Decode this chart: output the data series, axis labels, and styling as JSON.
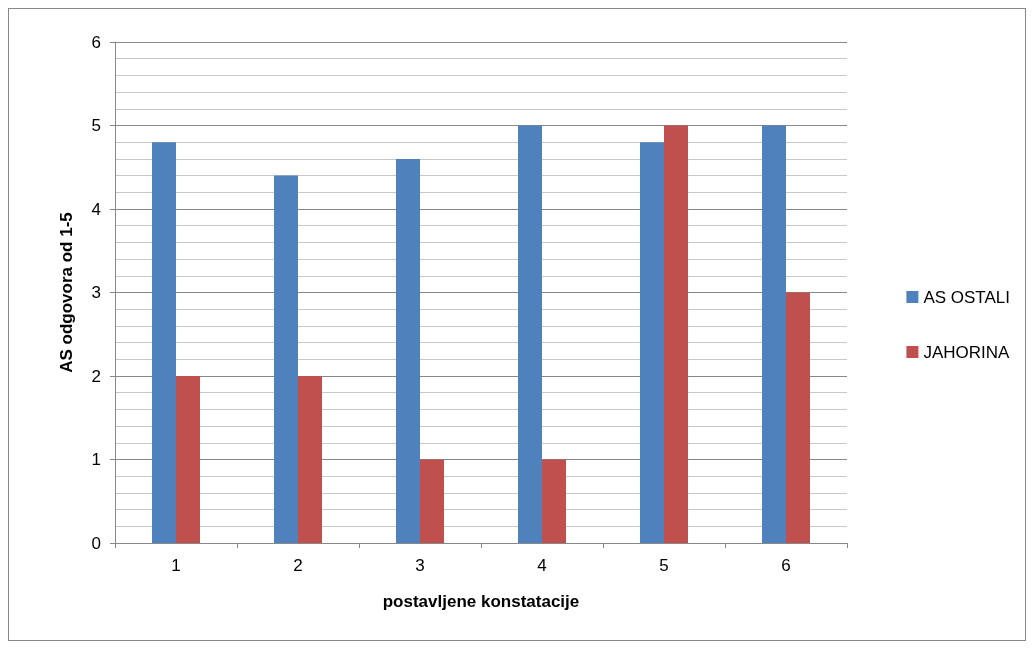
{
  "chart_data": {
    "type": "bar",
    "xlabel": "postavljene konstatacije",
    "ylabel": "AS odgovora od 1-5",
    "categories": [
      "1",
      "2",
      "3",
      "4",
      "5",
      "6"
    ],
    "series": [
      {
        "name": "AS OSTALI",
        "color": "#4f81bd",
        "values": [
          4.8,
          4.4,
          4.6,
          5,
          4.8,
          5
        ]
      },
      {
        "name": "JAHORINA",
        "color": "#c0504d",
        "values": [
          2,
          2,
          1,
          1,
          5,
          3
        ]
      }
    ],
    "ylim": [
      0,
      6
    ],
    "yticks": [
      0,
      1,
      2,
      3,
      4,
      5,
      6
    ],
    "grid": "y",
    "legend": "right"
  }
}
